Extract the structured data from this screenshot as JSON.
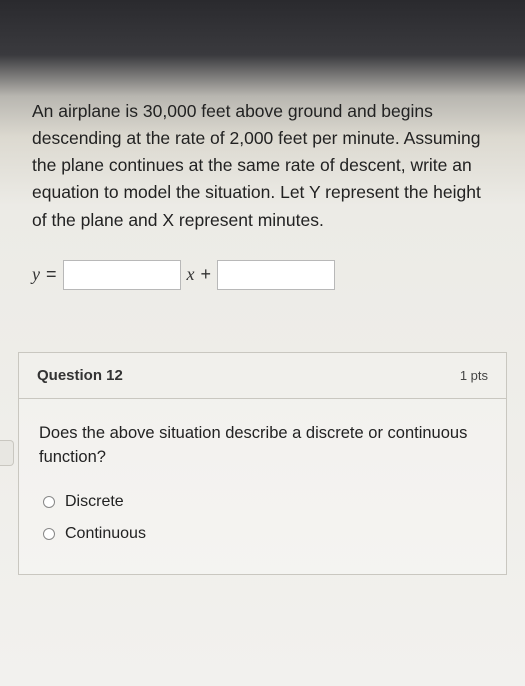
{
  "colors": {
    "text": "#222222",
    "border": "#c9c7c0",
    "input_border": "#b8b8b8",
    "background_card": "#f0efeb"
  },
  "problem": {
    "text": "An airplane is 30,000 feet above ground and begins descending at the rate of 2,000 feet per minute. Assuming the plane continues at the same rate of descent, write an equation to model the situation. Let Y represent the height of the plane and X represent minutes.",
    "fontsize": 17.5
  },
  "equation": {
    "lhs": "y",
    "eq": "=",
    "input1": "",
    "mid_var": "x",
    "plus": "+",
    "input2": ""
  },
  "question12": {
    "header": "Question 12",
    "points": "1 pts",
    "body": "Does the above situation describe a discrete or continuous function?",
    "options": [
      {
        "label": "Discrete"
      },
      {
        "label": "Continuous"
      }
    ]
  }
}
